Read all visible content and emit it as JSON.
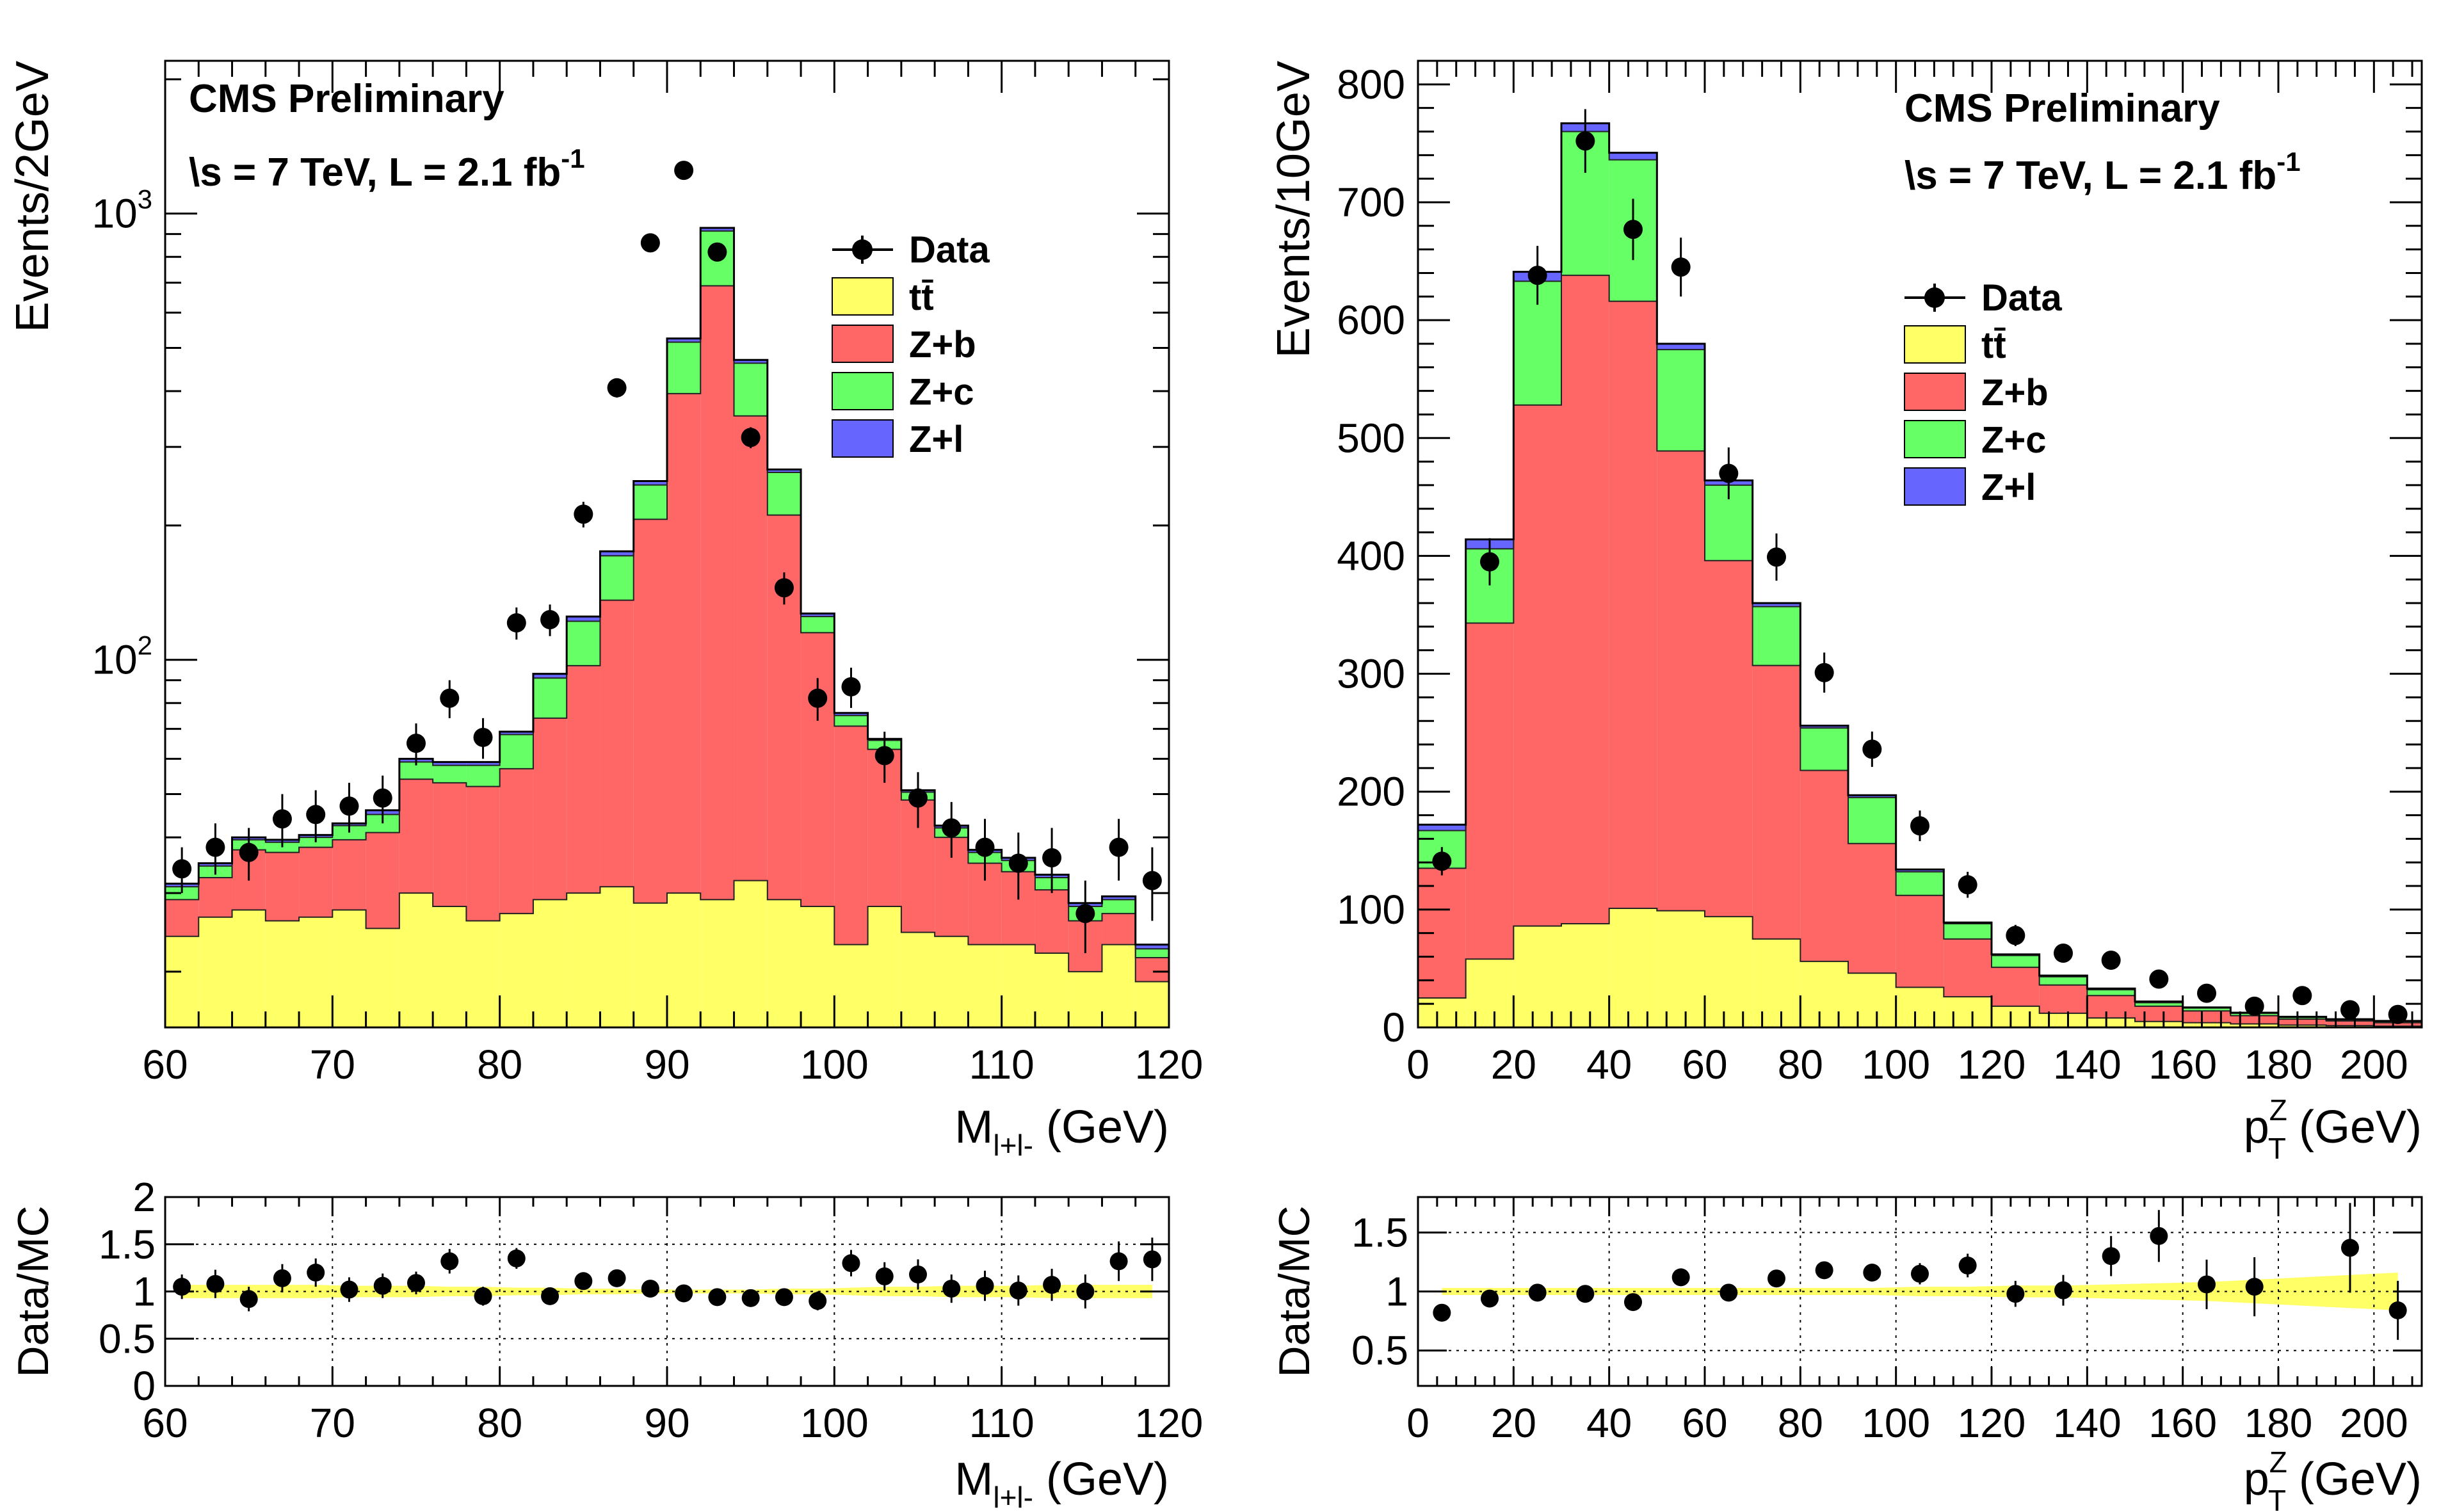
{
  "colors": {
    "ttbar": "#ffff66",
    "zb": "#ff6666",
    "zc": "#66ff66",
    "zl": "#6666ff",
    "band": "#ffff66"
  },
  "chart_data": [
    {
      "id": "mass",
      "type": "stacked-histogram-log",
      "title_lines": [
        "CMS Preliminary",
        "\\s = 7 TeV, L = 2.1 fb"
      ],
      "lumi_sup": "-1",
      "ylabel": "Events/2GeV",
      "xlabel": "M",
      "xlabel_sub": "l+l-",
      "xlabel_unit": " (GeV)",
      "xlim": [
        60,
        120
      ],
      "ylim": [
        15,
        2200
      ],
      "y_ticks": [
        {
          "v": 100,
          "label": "10",
          "sup": "2"
        },
        {
          "v": 1000,
          "label": "10",
          "sup": "3"
        }
      ],
      "x_ticks": [
        60,
        70,
        80,
        90,
        100,
        110,
        120
      ],
      "legend": [
        {
          "label": "Data",
          "kind": "marker"
        },
        {
          "label": "tt̄",
          "kind": "box",
          "color": "#ffff66"
        },
        {
          "label": "Z+b",
          "kind": "box",
          "color": "#ff6666"
        },
        {
          "label": "Z+c",
          "kind": "box",
          "color": "#66ff66"
        },
        {
          "label": "Z+l",
          "kind": "box",
          "color": "#6666ff"
        }
      ],
      "bin_edges": [
        60,
        62,
        64,
        66,
        68,
        70,
        72,
        74,
        76,
        78,
        80,
        82,
        84,
        86,
        88,
        90,
        92,
        94,
        96,
        98,
        100,
        102,
        104,
        106,
        108,
        110,
        112,
        114,
        116,
        118,
        120
      ],
      "series": [
        {
          "name": "tt̄",
          "values": [
            24,
            26.5,
            27.5,
            26,
            26.5,
            27.5,
            25,
            30,
            28,
            26,
            27,
            29,
            30,
            31,
            28.5,
            30,
            29,
            32,
            29,
            28,
            23,
            28,
            24.5,
            24,
            23,
            23,
            22,
            20,
            23,
            19
          ]
        },
        {
          "name": "Z+b",
          "values": [
            5,
            6,
            10,
            11,
            11.5,
            12,
            16,
            24,
            25,
            26,
            30,
            45,
            67,
            105,
            178,
            365,
            660,
            320,
            182,
            87,
            48,
            35,
            24,
            16,
            12,
            10.5,
            8.5,
            6,
            4,
            2.5
          ]
        },
        {
          "name": "Z+c",
          "values": [
            2,
            2,
            2,
            2,
            2,
            3,
            4,
            5,
            5,
            6,
            11,
            17,
            25,
            35,
            40,
            120,
            225,
            110,
            52,
            10,
            4,
            3,
            2,
            2,
            2,
            2,
            2,
            2,
            2,
            1
          ]
        },
        {
          "name": "Z+l",
          "values": [
            0.5,
            0.5,
            0.5,
            0.5,
            0.5,
            0.5,
            1,
            1,
            1,
            1,
            1,
            2,
            3,
            4,
            5,
            10,
            15,
            8,
            4,
            2,
            1,
            0.5,
            0.5,
            0.5,
            0.5,
            0.5,
            0.5,
            0.5,
            0.5,
            0.5
          ]
        }
      ],
      "data_points": [
        {
          "x": 61,
          "y": 34,
          "err": 4
        },
        {
          "x": 63,
          "y": 38,
          "err": 5
        },
        {
          "x": 65,
          "y": 37,
          "err": 5
        },
        {
          "x": 67,
          "y": 44,
          "err": 6
        },
        {
          "x": 69,
          "y": 45,
          "err": 6
        },
        {
          "x": 71,
          "y": 47,
          "err": 6
        },
        {
          "x": 73,
          "y": 49,
          "err": 6
        },
        {
          "x": 75,
          "y": 65,
          "err": 7
        },
        {
          "x": 77,
          "y": 82,
          "err": 8
        },
        {
          "x": 79,
          "y": 67,
          "err": 7
        },
        {
          "x": 81,
          "y": 121,
          "err": 10
        },
        {
          "x": 83,
          "y": 123,
          "err": 10
        },
        {
          "x": 85,
          "y": 212,
          "err": 14
        },
        {
          "x": 87,
          "y": 407,
          "err": 20
        },
        {
          "x": 89,
          "y": 860,
          "err": 29
        },
        {
          "x": 91,
          "y": 1250,
          "err": 35
        },
        {
          "x": 93,
          "y": 820,
          "err": 28
        },
        {
          "x": 95,
          "y": 315,
          "err": 17
        },
        {
          "x": 97,
          "y": 145,
          "err": 12
        },
        {
          "x": 99,
          "y": 82,
          "err": 9
        },
        {
          "x": 101,
          "y": 87,
          "err": 9
        },
        {
          "x": 103,
          "y": 61,
          "err": 8
        },
        {
          "x": 105,
          "y": 49,
          "err": 7
        },
        {
          "x": 107,
          "y": 42,
          "err": 6
        },
        {
          "x": 109,
          "y": 38,
          "err": 6
        },
        {
          "x": 111,
          "y": 35,
          "err": 6
        },
        {
          "x": 113,
          "y": 36,
          "err": 6
        },
        {
          "x": 115,
          "y": 27,
          "err": 5
        },
        {
          "x": 117,
          "y": 38,
          "err": 6
        },
        {
          "x": 119,
          "y": 32,
          "err": 6
        }
      ],
      "ratio": {
        "ylabel": "Data/MC",
        "ylim": [
          0,
          2
        ],
        "y_ticks": [
          "0",
          "0.5",
          "1",
          "1.5",
          "2"
        ],
        "y_tick_values": [
          0,
          0.5,
          1,
          1.5,
          2
        ],
        "band_half_width": [
          0.07,
          0.07,
          0.07,
          0.07,
          0.07,
          0.06,
          0.06,
          0.06,
          0.05,
          0.05,
          0.04,
          0.04,
          0.03,
          0.03,
          0.02,
          0.02,
          0.02,
          0.02,
          0.03,
          0.03,
          0.04,
          0.05,
          0.05,
          0.06,
          0.06,
          0.06,
          0.07,
          0.07,
          0.07,
          0.07
        ],
        "points": [
          {
            "x": 61,
            "y": 1.05,
            "err": 0.13
          },
          {
            "x": 63,
            "y": 1.08,
            "err": 0.15
          },
          {
            "x": 65,
            "y": 0.92,
            "err": 0.13
          },
          {
            "x": 67,
            "y": 1.14,
            "err": 0.15
          },
          {
            "x": 69,
            "y": 1.2,
            "err": 0.15
          },
          {
            "x": 71,
            "y": 1.02,
            "err": 0.13
          },
          {
            "x": 73,
            "y": 1.06,
            "err": 0.13
          },
          {
            "x": 75,
            "y": 1.09,
            "err": 0.12
          },
          {
            "x": 77,
            "y": 1.32,
            "err": 0.13
          },
          {
            "x": 79,
            "y": 0.95,
            "err": 0.1
          },
          {
            "x": 81,
            "y": 1.35,
            "err": 0.11
          },
          {
            "x": 83,
            "y": 0.95,
            "err": 0.08
          },
          {
            "x": 85,
            "y": 1.11,
            "err": 0.07
          },
          {
            "x": 87,
            "y": 1.14,
            "err": 0.05
          },
          {
            "x": 89,
            "y": 1.03,
            "err": 0.03
          },
          {
            "x": 91,
            "y": 0.98,
            "err": 0.03
          },
          {
            "x": 93,
            "y": 0.94,
            "err": 0.03
          },
          {
            "x": 95,
            "y": 0.93,
            "err": 0.05
          },
          {
            "x": 97,
            "y": 0.94,
            "err": 0.08
          },
          {
            "x": 99,
            "y": 0.9,
            "err": 0.1
          },
          {
            "x": 101,
            "y": 1.3,
            "err": 0.14
          },
          {
            "x": 103,
            "y": 1.16,
            "err": 0.15
          },
          {
            "x": 105,
            "y": 1.18,
            "err": 0.16
          },
          {
            "x": 107,
            "y": 1.03,
            "err": 0.15
          },
          {
            "x": 109,
            "y": 1.06,
            "err": 0.16
          },
          {
            "x": 111,
            "y": 1.01,
            "err": 0.16
          },
          {
            "x": 113,
            "y": 1.07,
            "err": 0.17
          },
          {
            "x": 115,
            "y": 1.0,
            "err": 0.18
          },
          {
            "x": 117,
            "y": 1.32,
            "err": 0.21
          },
          {
            "x": 119,
            "y": 1.34,
            "err": 0.23
          }
        ]
      }
    },
    {
      "id": "pt",
      "type": "stacked-histogram-linear",
      "title_lines": [
        "CMS Preliminary",
        "\\s = 7 TeV, L = 2.1 fb"
      ],
      "lumi_sup": "-1",
      "ylabel": "Events/10GeV",
      "xlabel": "p",
      "xlabel_sup": "Z",
      "xlabel_sub": "T",
      "xlabel_unit": " (GeV)",
      "xlim": [
        0,
        210
      ],
      "ylim": [
        0,
        820
      ],
      "y_ticks": [
        0,
        100,
        200,
        300,
        400,
        500,
        600,
        700,
        800
      ],
      "x_ticks": [
        0,
        20,
        40,
        60,
        80,
        100,
        120,
        140,
        160,
        180,
        200
      ],
      "legend": [
        {
          "label": "Data",
          "kind": "marker"
        },
        {
          "label": "tt̄",
          "kind": "box",
          "color": "#ffff66"
        },
        {
          "label": "Z+b",
          "kind": "box",
          "color": "#ff6666"
        },
        {
          "label": "Z+c",
          "kind": "box",
          "color": "#66ff66"
        },
        {
          "label": "Z+l",
          "kind": "box",
          "color": "#6666ff"
        }
      ],
      "bin_edges": [
        0,
        10,
        20,
        30,
        40,
        50,
        60,
        70,
        80,
        90,
        100,
        110,
        120,
        130,
        140,
        150,
        160,
        170,
        180,
        190,
        200,
        210
      ],
      "series": [
        {
          "name": "tt̄",
          "values": [
            25,
            58,
            86,
            88,
            101,
            99,
            94,
            75,
            56,
            46,
            34,
            26,
            18,
            12,
            8,
            5,
            4,
            3,
            2,
            1.5,
            1
          ]
        },
        {
          "name": "Z+b",
          "values": [
            110,
            285,
            442,
            550,
            515,
            390,
            302,
            232,
            162,
            110,
            78,
            49,
            33,
            24,
            19,
            13,
            10,
            7,
            5,
            4,
            3
          ]
        },
        {
          "name": "Z+c",
          "values": [
            32,
            63,
            105,
            122,
            120,
            86,
            64,
            50,
            36,
            39,
            20,
            13,
            10,
            7,
            5,
            3,
            2.5,
            2,
            1.5,
            1,
            1
          ]
        },
        {
          "name": "Z+l",
          "values": [
            5,
            8,
            8,
            7,
            6,
            5,
            4,
            3,
            2,
            2,
            2,
            1,
            1,
            1,
            1,
            1,
            0.5,
            0.5,
            0.5,
            0.5,
            0.5
          ]
        }
      ],
      "data_points": [
        {
          "x": 5,
          "y": 141,
          "err": 12
        },
        {
          "x": 15,
          "y": 395,
          "err": 20
        },
        {
          "x": 25,
          "y": 638,
          "err": 25
        },
        {
          "x": 35,
          "y": 752,
          "err": 27
        },
        {
          "x": 45,
          "y": 677,
          "err": 26
        },
        {
          "x": 55,
          "y": 645,
          "err": 25
        },
        {
          "x": 65,
          "y": 470,
          "err": 22
        },
        {
          "x": 75,
          "y": 399,
          "err": 20
        },
        {
          "x": 85,
          "y": 301,
          "err": 17
        },
        {
          "x": 95,
          "y": 236,
          "err": 15
        },
        {
          "x": 105,
          "y": 171,
          "err": 13
        },
        {
          "x": 115,
          "y": 121,
          "err": 11
        },
        {
          "x": 125,
          "y": 78,
          "err": 9
        },
        {
          "x": 135,
          "y": 63,
          "err": 8
        },
        {
          "x": 145,
          "y": 57,
          "err": 8
        },
        {
          "x": 155,
          "y": 41,
          "err": 6
        },
        {
          "x": 165,
          "y": 29,
          "err": 5
        },
        {
          "x": 175,
          "y": 18,
          "err": 4
        },
        {
          "x": 185,
          "y": 27,
          "err": 5
        },
        {
          "x": 195,
          "y": 15,
          "err": 4
        },
        {
          "x": 205,
          "y": 11,
          "err": 3
        }
      ],
      "ratio": {
        "ylabel": "Data/MC",
        "ylim": [
          0.2,
          1.8
        ],
        "y_ticks": [
          "0.5",
          "1",
          "1.5"
        ],
        "y_tick_values": [
          0.5,
          1,
          1.5
        ],
        "band_half_width": [
          0.03,
          0.03,
          0.03,
          0.03,
          0.03,
          0.03,
          0.03,
          0.03,
          0.03,
          0.03,
          0.04,
          0.04,
          0.05,
          0.05,
          0.06,
          0.07,
          0.08,
          0.1,
          0.12,
          0.14,
          0.16
        ],
        "points": [
          {
            "x": 5,
            "y": 0.82,
            "err": 0.06
          },
          {
            "x": 15,
            "y": 0.94,
            "err": 0.04
          },
          {
            "x": 25,
            "y": 0.99,
            "err": 0.04
          },
          {
            "x": 35,
            "y": 0.98,
            "err": 0.03
          },
          {
            "x": 45,
            "y": 0.91,
            "err": 0.03
          },
          {
            "x": 55,
            "y": 1.12,
            "err": 0.04
          },
          {
            "x": 65,
            "y": 0.99,
            "err": 0.04
          },
          {
            "x": 75,
            "y": 1.11,
            "err": 0.05
          },
          {
            "x": 85,
            "y": 1.18,
            "err": 0.06
          },
          {
            "x": 95,
            "y": 1.16,
            "err": 0.07
          },
          {
            "x": 105,
            "y": 1.15,
            "err": 0.09
          },
          {
            "x": 115,
            "y": 1.22,
            "err": 0.1
          },
          {
            "x": 125,
            "y": 0.98,
            "err": 0.11
          },
          {
            "x": 135,
            "y": 1.01,
            "err": 0.13
          },
          {
            "x": 145,
            "y": 1.3,
            "err": 0.17
          },
          {
            "x": 155,
            "y": 1.47,
            "err": 0.22
          },
          {
            "x": 165,
            "y": 1.06,
            "err": 0.21
          },
          {
            "x": 175,
            "y": 1.04,
            "err": 0.25
          },
          {
            "x": 185,
            "y": null,
            "err": 0
          },
          {
            "x": 195,
            "y": 1.37,
            "err": 0.38
          },
          {
            "x": 205,
            "y": 0.84,
            "err": 0.25
          }
        ]
      }
    }
  ]
}
